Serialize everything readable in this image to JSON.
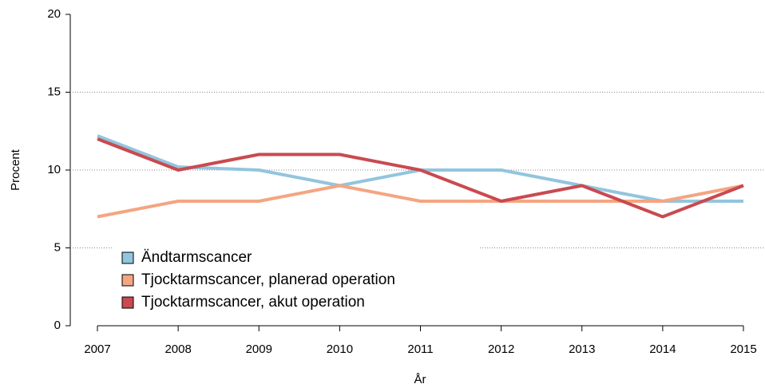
{
  "chart_data": {
    "type": "line",
    "x_label": "År",
    "y_label": "Procent",
    "x": [
      2007,
      2008,
      2009,
      2010,
      2011,
      2012,
      2013,
      2014,
      2015
    ],
    "xlim": [
      2007,
      2015
    ],
    "xticks": [
      2007,
      2008,
      2009,
      2010,
      2011,
      2012,
      2013,
      2014,
      2015
    ],
    "ylim": [
      0,
      20
    ],
    "yticks": [
      0,
      5,
      10,
      15,
      20
    ],
    "grid": true,
    "legend": "bottom-left",
    "series": [
      {
        "name": "Ändtarmscancer",
        "color": "#92c5de",
        "values": [
          12.2,
          10.2,
          10,
          9,
          10,
          10,
          9,
          8,
          8
        ]
      },
      {
        "name": "Tjocktarmscancer, planerad operation",
        "color": "#f4a582",
        "values": [
          7,
          8,
          8,
          9,
          8,
          8,
          8,
          8,
          9
        ]
      },
      {
        "name": "Tjocktarmscancer, akut operation",
        "color": "#c94a4f",
        "values": [
          12,
          10,
          11,
          11,
          10,
          8,
          9,
          7,
          9
        ]
      }
    ]
  }
}
